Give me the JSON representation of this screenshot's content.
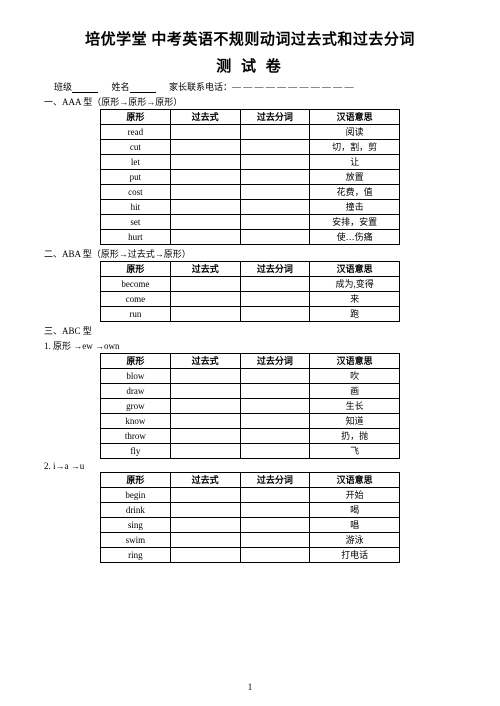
{
  "title": "培优学堂  中考英语不规则动词过去式和过去分词",
  "subtitle": "测 试 卷",
  "info": {
    "class_label": "班级",
    "name_label": "姓名",
    "phone_label": "家长联系电话：",
    "phone_blank": "— — — — — — — — — — —"
  },
  "headers": {
    "base": "原形",
    "past": "过去式",
    "pp": "过去分词",
    "meaning": "汉语意思"
  },
  "sections": [
    {
      "label": "一、AAA 型（原形→原形→原形）",
      "rows": [
        {
          "base": "read",
          "meaning": "阅读"
        },
        {
          "base": "cut",
          "meaning": "切，割，剪"
        },
        {
          "base": "let",
          "meaning": "让"
        },
        {
          "base": "put",
          "meaning": "放置"
        },
        {
          "base": "cost",
          "meaning": "花费，值"
        },
        {
          "base": "hit",
          "meaning": "撞击"
        },
        {
          "base": "set",
          "meaning": "安排，安置"
        },
        {
          "base": "hurt",
          "meaning": "使…伤痛"
        }
      ]
    },
    {
      "label": "二、ABA 型（原形→过去式→原形）",
      "rows": [
        {
          "base": "become",
          "meaning": "成为,变得"
        },
        {
          "base": "come",
          "meaning": "来"
        },
        {
          "base": "run",
          "meaning": "跑"
        }
      ]
    }
  ],
  "section3": {
    "label": "三、ABC 型",
    "groups": [
      {
        "sublabel": "1. 原形 →ew →own",
        "rows": [
          {
            "base": "blow",
            "meaning": "吹"
          },
          {
            "base": "draw",
            "meaning": "画"
          },
          {
            "base": "grow",
            "meaning": "生长"
          },
          {
            "base": "know",
            "meaning": "知道"
          },
          {
            "base": "throw",
            "meaning": "扔，抛"
          },
          {
            "base": "fly",
            "meaning": "飞"
          }
        ]
      },
      {
        "sublabel": "2. i→a →u",
        "rows": [
          {
            "base": "begin",
            "meaning": "开始"
          },
          {
            "base": "drink",
            "meaning": "喝"
          },
          {
            "base": "sing",
            "meaning": "唱"
          },
          {
            "base": "swim",
            "meaning": "游泳"
          },
          {
            "base": "ring",
            "meaning": "打电话"
          }
        ]
      }
    ]
  },
  "page_number": "1"
}
